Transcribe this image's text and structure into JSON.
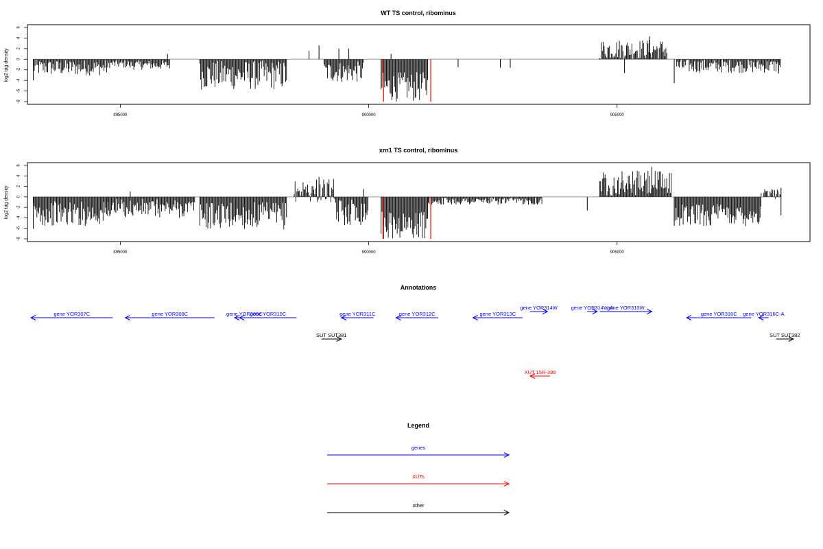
{
  "chart_data": [
    {
      "type": "bar",
      "title": "WT TS control, ribominus",
      "ylabel": "log2 tag density",
      "xlabel": "",
      "xlim": [
        893200,
        908800
      ],
      "ylim": [
        -8,
        6
      ],
      "yticks": [
        -8,
        -6,
        -4,
        -2,
        0,
        2,
        4,
        6
      ],
      "xticks": [
        895000,
        900000,
        905000
      ],
      "xtick_labels": [
        "895000",
        "900000",
        "905000"
      ],
      "grid": false,
      "baseline": 0,
      "colors": {
        "bars": "#000000",
        "highlight": "#ff0000",
        "baseline": "#999999"
      },
      "segments": [
        {
          "x0": 893250,
          "x1": 894750,
          "mean": -1.6,
          "amp": 1.5
        },
        {
          "x0": 894750,
          "x1": 895200,
          "mean": -0.9,
          "amp": 0.8
        },
        {
          "x0": 895200,
          "x1": 896000,
          "mean": -1.1,
          "amp": 0.9
        },
        {
          "x0": 896600,
          "x1": 898350,
          "mean": -3.0,
          "amp": 2.8
        },
        {
          "x0": 899100,
          "x1": 899900,
          "mean": -2.4,
          "amp": 2.0
        },
        {
          "x0": 900250,
          "x1": 901200,
          "mean": -5.2,
          "amp": 2.8
        },
        {
          "x0": 904650,
          "x1": 906000,
          "mean": 1.9,
          "amp": 1.9
        },
        {
          "x0": 906200,
          "x1": 908300,
          "mean": -1.3,
          "amp": 1.3
        }
      ],
      "points": [
        {
          "x": 893250,
          "y": -4.0
        },
        {
          "x": 895950,
          "y": 1.0
        },
        {
          "x": 898800,
          "y": 1.6
        },
        {
          "x": 899000,
          "y": 2.6
        },
        {
          "x": 899400,
          "y": 2.0
        },
        {
          "x": 899600,
          "y": 2.0
        },
        {
          "x": 900450,
          "y": 1.0
        },
        {
          "x": 901800,
          "y": -1.5
        },
        {
          "x": 902650,
          "y": -1.6
        },
        {
          "x": 902850,
          "y": -1.6
        },
        {
          "x": 905150,
          "y": -2.6
        },
        {
          "x": 905650,
          "y": 4.3
        },
        {
          "x": 906150,
          "y": -4.5
        },
        {
          "x": 908250,
          "y": -2.7
        }
      ],
      "highlight": [
        {
          "x": 900300,
          "y": -8.0
        },
        {
          "x": 901250,
          "y": -8.0
        }
      ]
    },
    {
      "type": "bar",
      "title": "xrn1 TS control, ribominus",
      "ylabel": "log2 tag density",
      "xlabel": "",
      "xlim": [
        893200,
        908800
      ],
      "ylim": [
        -8,
        6
      ],
      "yticks": [
        -8,
        -6,
        -4,
        -2,
        0,
        2,
        4,
        6
      ],
      "xticks": [
        895000,
        900000,
        905000
      ],
      "xtick_labels": [
        "895000",
        "900000",
        "905000"
      ],
      "grid": false,
      "baseline": 0,
      "colors": {
        "bars": "#000000",
        "highlight": "#ff0000",
        "baseline": "#999999"
      },
      "segments": [
        {
          "x0": 893250,
          "x1": 894750,
          "mean": -3.2,
          "amp": 2.4
        },
        {
          "x0": 894750,
          "x1": 896500,
          "mean": -2.2,
          "amp": 1.8
        },
        {
          "x0": 896600,
          "x1": 898350,
          "mean": -3.6,
          "amp": 2.6
        },
        {
          "x0": 898500,
          "x1": 899300,
          "mean": 1.2,
          "amp": 2.3
        },
        {
          "x0": 899300,
          "x1": 900000,
          "mean": -2.8,
          "amp": 2.6
        },
        {
          "x0": 900250,
          "x1": 901200,
          "mean": -5.4,
          "amp": 2.6
        },
        {
          "x0": 901200,
          "x1": 903500,
          "mean": -0.8,
          "amp": 0.7
        },
        {
          "x0": 904650,
          "x1": 906100,
          "mean": 2.6,
          "amp": 2.4
        },
        {
          "x0": 906150,
          "x1": 907900,
          "mean": -3.4,
          "amp": 2.2
        },
        {
          "x0": 907900,
          "x1": 908300,
          "mean": 0.6,
          "amp": 1.0
        }
      ],
      "points": [
        {
          "x": 893250,
          "y": -6.1
        },
        {
          "x": 895200,
          "y": 1.0
        },
        {
          "x": 899000,
          "y": 3.8
        },
        {
          "x": 899900,
          "y": 1.5
        },
        {
          "x": 904400,
          "y": -2.6
        },
        {
          "x": 905700,
          "y": 5.7
        },
        {
          "x": 906150,
          "y": -5.5
        },
        {
          "x": 908300,
          "y": -3.5
        },
        {
          "x": 908300,
          "y": 1.7
        }
      ],
      "highlight": [
        {
          "x": 900300,
          "y": -8.0
        },
        {
          "x": 901250,
          "y": -8.0
        }
      ]
    }
  ],
  "annotations": {
    "title": "Annotations",
    "items": [
      {
        "label": "gene YOR307C",
        "kind": "gene",
        "strand": "-",
        "start": 893200,
        "end": 894850,
        "row": 0
      },
      {
        "label": "gene YOR308C",
        "kind": "gene",
        "strand": "-",
        "start": 895100,
        "end": 896900,
        "row": 0
      },
      {
        "label": "gene YOR309C",
        "kind": "gene",
        "strand": "-",
        "start": 897300,
        "end": 897700,
        "row": 0
      },
      {
        "label": "gene YOR310C",
        "kind": "gene",
        "strand": "-",
        "start": 897400,
        "end": 898550,
        "row": 0
      },
      {
        "label": "gene YOR311C",
        "kind": "gene",
        "strand": "-",
        "start": 899450,
        "end": 900100,
        "row": 0
      },
      {
        "label": "gene YOR312C",
        "kind": "gene",
        "strand": "-",
        "start": 900550,
        "end": 901400,
        "row": 0
      },
      {
        "label": "gene YOR313C",
        "kind": "gene",
        "strand": "-",
        "start": 902100,
        "end": 903100,
        "row": 0
      },
      {
        "label": "gene YOR314W",
        "kind": "gene",
        "strand": "+",
        "start": 903250,
        "end": 903600,
        "row": 0
      },
      {
        "label": "gene YOR314W-A",
        "kind": "gene",
        "strand": "+",
        "start": 904400,
        "end": 904600,
        "row": 0
      },
      {
        "label": "gene YOR315W",
        "kind": "gene",
        "strand": "+",
        "start": 904650,
        "end": 905700,
        "row": 0
      },
      {
        "label": "gene YOR316C",
        "kind": "gene",
        "strand": "-",
        "start": 906400,
        "end": 907700,
        "row": 0
      },
      {
        "label": "gene YOR316C-A",
        "kind": "gene",
        "strand": "-",
        "start": 907850,
        "end": 908050,
        "row": 0
      },
      {
        "label": "SUT SUT381",
        "kind": "other",
        "strand": "+",
        "start": 899050,
        "end": 899450,
        "row": 1
      },
      {
        "label": "SUT SUT382",
        "kind": "other",
        "strand": "+",
        "start": 908200,
        "end": 908550,
        "row": 1
      },
      {
        "label": "XUT 15R-399",
        "kind": "xut",
        "strand": "-",
        "start": 903250,
        "end": 903650,
        "row": 2
      }
    ]
  },
  "legend": {
    "title": "Legend",
    "entries": [
      {
        "label": "genes",
        "color": "#0000ff"
      },
      {
        "label": "XUTs",
        "color": "#ff0000"
      },
      {
        "label": "other",
        "color": "#000000"
      }
    ]
  }
}
